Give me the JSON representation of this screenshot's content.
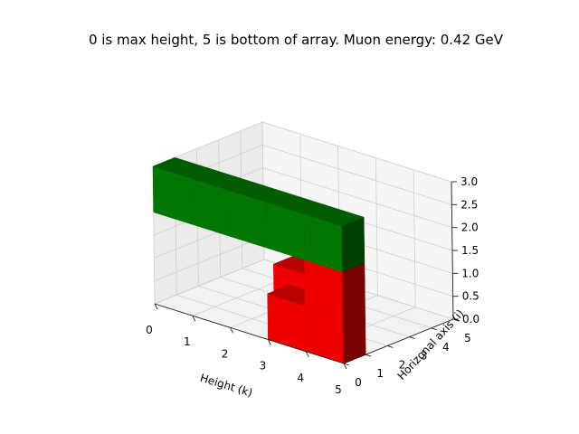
{
  "chart_data": {
    "type": "3d-voxel",
    "title": "0 is max height, 5 is bottom of array. Muon energy: 0.42 GeV",
    "xlabel": "Height (k)",
    "ylabel": "Horizonal axis (i)",
    "zlabel": "",
    "xlim": [
      0,
      5
    ],
    "ylim": [
      0,
      5
    ],
    "zlim": [
      0,
      3
    ],
    "xticks": [
      "0",
      "1",
      "2",
      "3",
      "4",
      "5"
    ],
    "yticks": [
      "0",
      "1",
      "2",
      "3",
      "4",
      "5"
    ],
    "zticks": [
      "0.0",
      "0.5",
      "1.0",
      "1.5",
      "2.0",
      "2.5",
      "3.0"
    ],
    "grid": true,
    "colors": {
      "red": "#ff0000",
      "green": "#008000"
    },
    "voxels": [
      {
        "x": 4,
        "y": 0,
        "z": 0,
        "color": "red"
      },
      {
        "x": 4,
        "y": 0,
        "z": 1,
        "color": "red"
      },
      {
        "x": 3,
        "y": 0,
        "z": 0,
        "color": "red"
      },
      {
        "x": 2,
        "y": 2,
        "z": 0,
        "color": "red"
      },
      {
        "x": 0,
        "y": 0,
        "z": 2,
        "color": "green"
      },
      {
        "x": 1,
        "y": 0,
        "z": 2,
        "color": "green"
      },
      {
        "x": 2,
        "y": 0,
        "z": 2,
        "color": "green"
      },
      {
        "x": 3,
        "y": 0,
        "z": 2,
        "color": "green"
      },
      {
        "x": 4,
        "y": 0,
        "z": 2,
        "color": "green"
      }
    ]
  }
}
